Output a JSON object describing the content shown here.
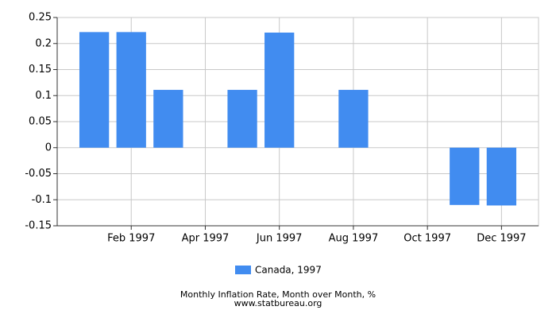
{
  "chart_data": {
    "type": "bar",
    "title": "Monthly Inflation Rate, Month over Month, %",
    "source": "www.statbureau.org",
    "categories": [
      null,
      "Feb 1997",
      null,
      "Apr 1997",
      null,
      "Jun 1997",
      null,
      "Aug 1997",
      null,
      "Oct 1997",
      null,
      "Dec 1997"
    ],
    "series": [
      {
        "name": "Canada, 1997",
        "color": "#418cf0",
        "values": [
          0.222,
          0.222,
          0.111,
          0,
          0.111,
          0.221,
          0,
          0.111,
          0,
          0,
          -0.11,
          -0.111
        ]
      }
    ],
    "ylim": [
      -0.15,
      0.25
    ],
    "yticks": [
      0.25,
      0.2,
      0.15,
      0.1,
      0.05,
      0,
      -0.05,
      -0.1,
      -0.15
    ],
    "grid": true
  }
}
